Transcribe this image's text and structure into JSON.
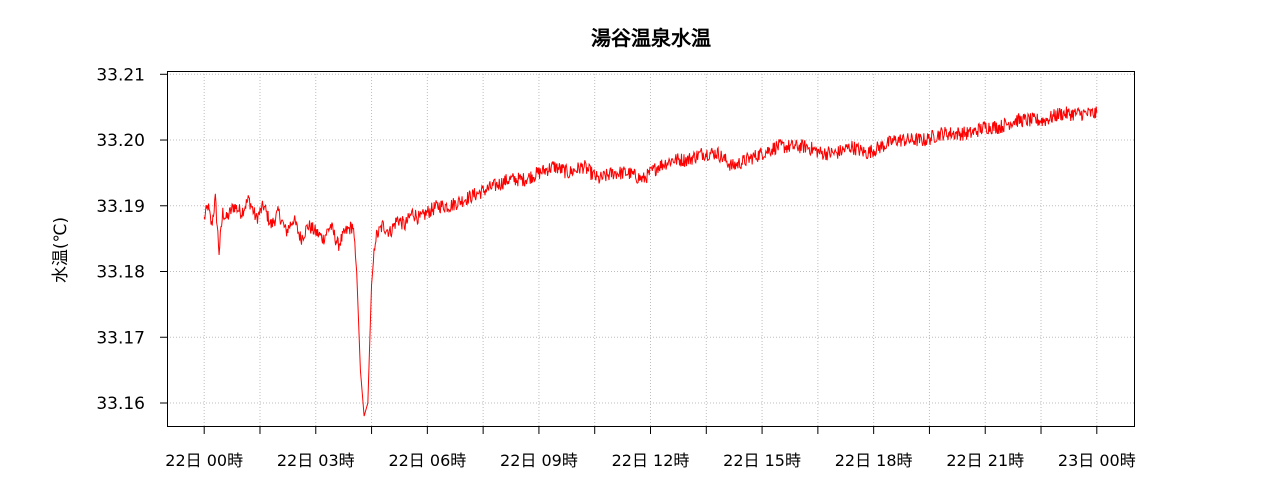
{
  "chart_data": {
    "type": "line",
    "title": "湯谷温泉水温",
    "xlabel": "",
    "ylabel": "水温(℃)",
    "ylim": [
      33.1565,
      33.2105
    ],
    "xlim": [
      -1,
      25
    ],
    "yticks": [
      "33.16",
      "33.17",
      "33.18",
      "33.19",
      "33.20",
      "33.21"
    ],
    "ytick_values": [
      33.16,
      33.17,
      33.18,
      33.19,
      33.2,
      33.21
    ],
    "xticks": [
      {
        "value": 0,
        "label": "22日 00時"
      },
      {
        "value": 3,
        "label": "22日 03時"
      },
      {
        "value": 6,
        "label": "22日 06時"
      },
      {
        "value": 9,
        "label": "22日 09時"
      },
      {
        "value": 12,
        "label": "22日 12時"
      },
      {
        "value": 15,
        "label": "22日 15時"
      },
      {
        "value": 18,
        "label": "22日 18時"
      },
      {
        "value": 21,
        "label": "22日 21時"
      },
      {
        "value": 24,
        "label": "23日 00時"
      }
    ],
    "grid": true,
    "series": [
      {
        "color": "#ff0000",
        "x": [
          0.0,
          0.1,
          0.2,
          0.3,
          0.4,
          0.5,
          0.6,
          0.8,
          1.0,
          1.2,
          1.4,
          1.6,
          1.8,
          2.0,
          2.2,
          2.4,
          2.6,
          2.8,
          3.0,
          3.2,
          3.4,
          3.6,
          3.8,
          4.0,
          4.1,
          4.2,
          4.3,
          4.4,
          4.5,
          4.6,
          4.8,
          5.0,
          5.2,
          5.4,
          5.6,
          5.8,
          6.0,
          6.3,
          6.6,
          7.0,
          7.4,
          7.8,
          8.2,
          8.6,
          9.0,
          9.4,
          9.8,
          10.2,
          10.6,
          11.0,
          11.4,
          11.8,
          12.2,
          12.6,
          13.0,
          13.4,
          13.8,
          14.2,
          14.6,
          15.0,
          15.4,
          15.8,
          16.2,
          16.6,
          17.0,
          17.4,
          17.8,
          18.2,
          18.6,
          19.0,
          19.4,
          19.8,
          20.2,
          20.6,
          21.0,
          21.4,
          21.8,
          22.2,
          22.6,
          23.0,
          23.4,
          23.8,
          24.0
        ],
        "y": [
          33.188,
          33.19,
          33.187,
          33.191,
          33.183,
          33.189,
          33.188,
          33.19,
          33.189,
          33.191,
          33.188,
          33.19,
          33.187,
          33.189,
          33.186,
          33.188,
          33.185,
          33.187,
          33.186,
          33.185,
          33.187,
          33.184,
          33.186,
          33.187,
          33.18,
          33.165,
          33.158,
          33.16,
          33.178,
          33.185,
          33.187,
          33.186,
          33.188,
          33.187,
          33.189,
          33.188,
          33.189,
          33.19,
          33.19,
          33.191,
          33.192,
          33.193,
          33.194,
          33.194,
          33.195,
          33.196,
          33.195,
          33.196,
          33.194,
          33.195,
          33.195,
          33.194,
          33.196,
          33.197,
          33.197,
          33.198,
          33.198,
          33.196,
          33.197,
          33.198,
          33.199,
          33.199,
          33.199,
          33.198,
          33.198,
          33.199,
          33.198,
          33.199,
          33.2,
          33.2,
          33.2,
          33.201,
          33.201,
          33.201,
          33.202,
          33.202,
          33.203,
          33.203,
          33.203,
          33.204,
          33.204,
          33.204,
          33.204
        ],
        "noise": 0.0022
      }
    ]
  }
}
